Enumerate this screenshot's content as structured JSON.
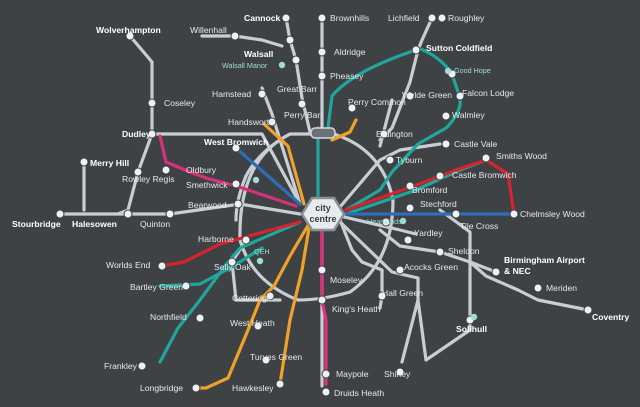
{
  "map": {
    "hub_label_lines": [
      "city",
      "centre"
    ],
    "colors": {
      "background": "#3e4245",
      "grey": "#c9ced2",
      "teal": "#1fa79c",
      "blue": "#2f6db5",
      "orange": "#f0a12b",
      "red": "#d6232e",
      "pink": "#d8307a",
      "magenta": "#e0317f"
    },
    "stops": {
      "cannock": "Cannock",
      "brownhills": "Brownhills",
      "lichfield": "Lichfield",
      "roughley": "Roughley",
      "wolverhampton": "Wolverhampton",
      "willenhall": "Willenhall",
      "walsall": "Walsall",
      "walsall_manor": "Walsall Manor",
      "aldridge": "Aldridge",
      "sutton_coldfield": "Sutton Coldfield",
      "good_hope": "Good Hope",
      "hamstead": "Hamstead",
      "great_barr": "Great Barr",
      "pheasey": "Pheasey",
      "coseley": "Coseley",
      "wylde_green": "Wylde Green",
      "falcon_lodge": "Falcon Lodge",
      "perry_barr": "Perry Barr",
      "perry_common": "Perry Common",
      "walmley": "Walmley",
      "handsworth": "Handsworth",
      "dudley": "Dudley",
      "erdington": "Erdington",
      "west_bromwich": "West Bromwich",
      "castle_vale": "Castle Vale",
      "tyburn": "Tyburn",
      "smiths_wood": "Smiths Wood",
      "merry_hill": "Merry Hill",
      "oldbury": "Oldbury",
      "rowley_regis": "Rowley Regis",
      "smethwick": "Smethwick",
      "bromford": "Bromford",
      "castle_bromwich": "Castle Bromwich",
      "bearwood": "Bearwood",
      "stechford": "Stechford",
      "stourbridge": "Stourbridge",
      "halesowen": "Halesowen",
      "quinton": "Quinton",
      "heartlands": "Heartlands",
      "tile_cross": "Tile Cross",
      "chelmsley_wood": "Chelmsley Wood",
      "harborne": "Harborne",
      "yardley": "Yardley",
      "qeh": "QEH",
      "sheldon": "Sheldon",
      "worlds_end": "Worlds End",
      "selly_oak": "Selly Oak",
      "birmingham_airport": "Birmingham Airport",
      "nec": "& NEC",
      "bartley_green": "Bartley Green",
      "moseley": "Moseley",
      "acocks_green": "Acocks Green",
      "meriden": "Meriden",
      "cotteridge": "Cotteridge",
      "hall_green": "Hall Green",
      "northfield": "Northfield",
      "kings_heath": "King's Heath",
      "solihull": "Solihull",
      "coventry": "Coventry",
      "west_heath": "West Heath",
      "frankley": "Frankley",
      "turves_green": "Turves Green",
      "maypole": "Maypole",
      "shirley": "Shirley",
      "longbridge": "Longbridge",
      "hawkesley": "Hawkesley",
      "druids_heath": "Druids Heath"
    }
  }
}
